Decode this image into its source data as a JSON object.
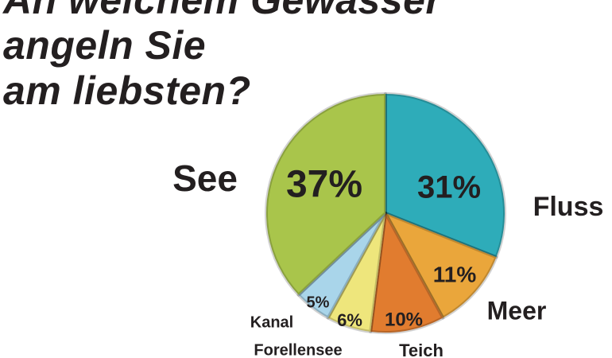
{
  "chart_data": {
    "type": "pie",
    "title": "An welchem Gewässer\nangeln Sie\nam liebsten?",
    "categories": [
      "Fluss",
      "Meer",
      "Teich",
      "Forellensee",
      "Kanal",
      "See"
    ],
    "values": [
      31,
      11,
      10,
      6,
      5,
      37
    ],
    "value_labels": [
      "31%",
      "11%",
      "10%",
      "6%",
      "5%",
      "37%"
    ],
    "colors": [
      "#2eacb9",
      "#eaa63b",
      "#e17c2f",
      "#eee67c",
      "#a9d5ea",
      "#a9c54b"
    ]
  }
}
